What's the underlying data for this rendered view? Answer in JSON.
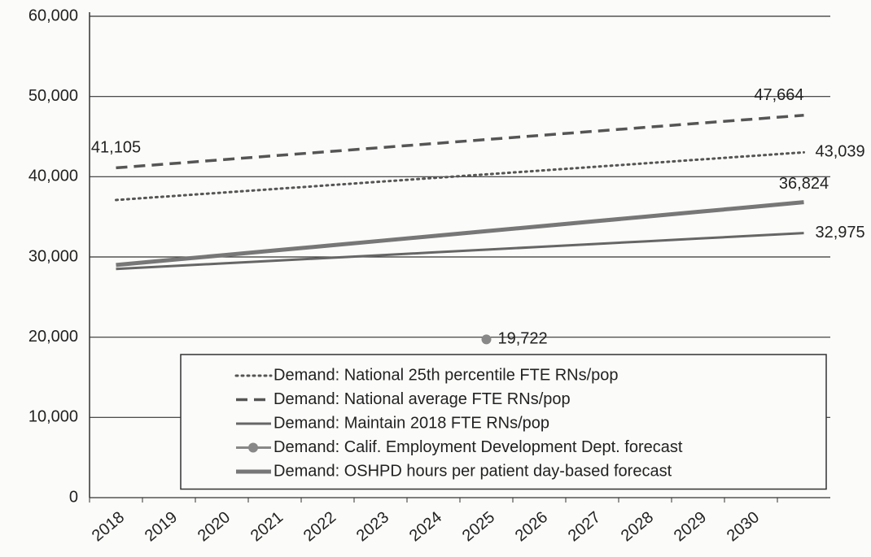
{
  "chart_data": {
    "type": "line",
    "categories": [
      "2018",
      "2019",
      "2020",
      "2021",
      "2022",
      "2023",
      "2024",
      "2025",
      "2026",
      "2027",
      "2028",
      "2029",
      "2030",
      null
    ],
    "series": [
      {
        "name": "Demand: National 25th percentile FTE RNs/pop",
        "color": "#555555",
        "style": "dotted",
        "values": [
          37100,
          37557,
          38014,
          38470,
          38927,
          39384,
          39841,
          40298,
          40754,
          41211,
          41668,
          42125,
          42582,
          43039
        ],
        "value_labels": [
          null,
          null,
          null,
          null,
          null,
          null,
          null,
          null,
          null,
          null,
          null,
          null,
          null,
          "43,039"
        ]
      },
      {
        "name": "Demand: National average FTE RNs/pop",
        "color": "#555555",
        "style": "dashed",
        "values": [
          41105,
          41610,
          42114,
          42619,
          43123,
          43628,
          44132,
          44637,
          45141,
          45646,
          46150,
          46655,
          47159,
          47664
        ],
        "value_labels": [
          "41,105",
          null,
          null,
          null,
          null,
          null,
          null,
          null,
          null,
          null,
          null,
          null,
          null,
          "47,664"
        ]
      },
      {
        "name": "Demand: Maintain 2018 FTE RNs/pop",
        "color": "#666666",
        "style": "solid",
        "values": [
          28500,
          28844,
          29188,
          29533,
          29877,
          30221,
          30565,
          30910,
          31254,
          31598,
          31942,
          32287,
          32631,
          32975
        ],
        "value_labels": [
          null,
          null,
          null,
          null,
          null,
          null,
          null,
          null,
          null,
          null,
          null,
          null,
          null,
          "32,975"
        ]
      },
      {
        "name": "Demand: Calif. Employment Development Dept. forecast",
        "color": "#888888",
        "style": "solid",
        "marker": true,
        "values": [
          null,
          null,
          null,
          null,
          null,
          null,
          null,
          19722,
          null,
          null,
          null,
          null,
          null,
          null
        ],
        "value_labels": [
          null,
          null,
          null,
          null,
          null,
          null,
          null,
          "19,722",
          null,
          null,
          null,
          null,
          null,
          null
        ]
      },
      {
        "name": "Demand: OSHPD hours per patient day-based forecast",
        "color": "#777777",
        "style": "thick",
        "values": [
          29000,
          29602,
          30204,
          30806,
          31407,
          32009,
          32611,
          33213,
          33815,
          34417,
          35018,
          35620,
          36222,
          36824
        ],
        "value_labels": [
          null,
          null,
          null,
          null,
          null,
          null,
          null,
          null,
          null,
          null,
          null,
          null,
          null,
          "36,824"
        ]
      }
    ],
    "ylim": [
      0,
      60000
    ],
    "yticks": [
      0,
      {
        "value": 10000,
        "label": "10,000"
      },
      {
        "value": 20000,
        "label": "20,000"
      },
      {
        "value": 30000,
        "label": "30,000"
      },
      {
        "value": 40000,
        "label": "40,000"
      },
      {
        "value": 50000,
        "label": "50,000"
      },
      {
        "value": 60000,
        "label": "60,000"
      }
    ],
    "grid": true,
    "legend": "bottom"
  }
}
